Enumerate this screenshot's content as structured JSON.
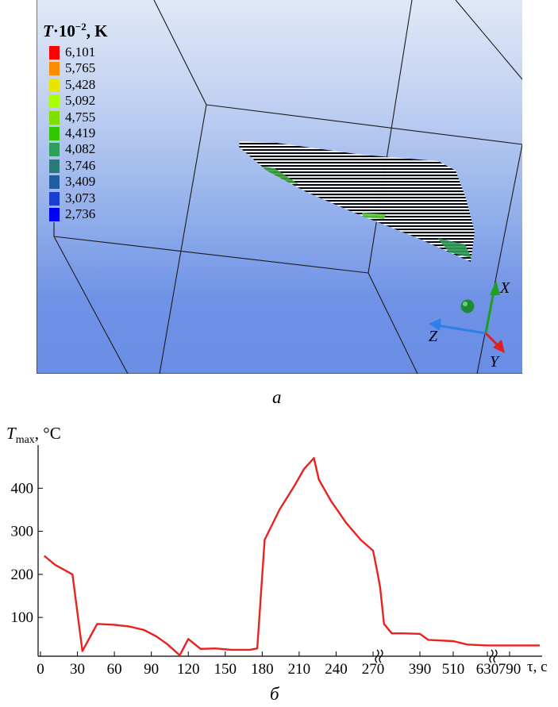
{
  "panel_a": {
    "label": "a",
    "legend": {
      "title_symbol": "T",
      "title_factor": "·10",
      "title_exponent": "−2",
      "title_unit": ", K",
      "entries": [
        {
          "value": "6,101",
          "color": "#ff0000"
        },
        {
          "value": "5,765",
          "color": "#ff8c00"
        },
        {
          "value": "5,428",
          "color": "#e6e600"
        },
        {
          "value": "5,092",
          "color": "#aaff00"
        },
        {
          "value": "4,755",
          "color": "#7fe000"
        },
        {
          "value": "4,419",
          "color": "#33c700"
        },
        {
          "value": "4,082",
          "color": "#2e9e5c"
        },
        {
          "value": "3,746",
          "color": "#2a7a7a"
        },
        {
          "value": "3,409",
          "color": "#1e5fa0"
        },
        {
          "value": "3,073",
          "color": "#1a3fd0"
        },
        {
          "value": "2,736",
          "color": "#0000ff"
        }
      ]
    },
    "axes": {
      "x": {
        "label": "X",
        "color": "#20a020"
      },
      "y": {
        "label": "Y",
        "color": "#e02020"
      },
      "z": {
        "label": "Z",
        "color": "#2f7fe8"
      }
    }
  },
  "panel_b": {
    "label": "б",
    "y_label_symbol": "T",
    "y_label_subscript": "max",
    "y_label_unit": ", °C",
    "x_label": "τ, с"
  },
  "chart_data": {
    "type": "line",
    "title": "",
    "xlabel": "τ, с",
    "ylabel": "Tmax, °C",
    "ylim": [
      10,
      500
    ],
    "x_tick_labels": [
      "0",
      "30",
      "60",
      "90",
      "120",
      "150",
      "180",
      "210",
      "240",
      "270",
      "390",
      "510",
      "630",
      "790"
    ],
    "y_ticks": [
      100,
      200,
      300,
      400
    ],
    "grid": false,
    "axis_breaks": [
      "between 270 and 390",
      "between 630 and 790"
    ],
    "series": [
      {
        "color": "#e8221e",
        "x": [
          3,
          12,
          26,
          34,
          46,
          60,
          72,
          84,
          94,
          103,
          113,
          120,
          130,
          142,
          155,
          170,
          176,
          182,
          194,
          206,
          214,
          222,
          226,
          236,
          248,
          260,
          270,
          280,
          288,
          298,
          318,
          345,
          390,
          420,
          450,
          510,
          560,
          630,
          690,
          750,
          790,
          838
        ],
        "y": [
          243,
          222,
          200,
          22,
          85,
          83,
          79,
          71,
          56,
          38,
          12,
          50,
          27,
          28,
          25,
          25,
          28,
          280,
          350,
          405,
          445,
          470,
          420,
          370,
          320,
          280,
          255,
          210,
          170,
          85,
          63,
          63,
          62,
          48,
          47,
          45,
          37,
          35,
          35,
          35,
          35,
          35
        ]
      }
    ]
  }
}
